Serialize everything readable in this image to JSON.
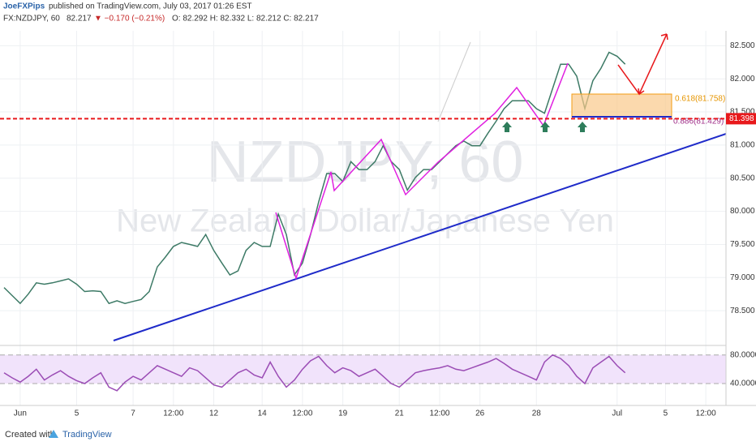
{
  "header": {
    "author": "JoeFXPips",
    "published": "published on TradingView.com, July 03, 2017 01:26 EST",
    "symbol": "FX:NZDJPY, 60",
    "price": "82.217",
    "change": "▼ −0.170 (−0.21%)",
    "ohlc": "O: 82.292 H: 82.332 L: 82.212 C: 82.217"
  },
  "watermark": {
    "symbol": "NZDJPY, 60",
    "name": "New Zealand Dollar/Japanese Yen"
  },
  "annotations": {
    "fib_618": "0.618(81.758)",
    "fib_886": "0.886(81.429)"
  },
  "footer": {
    "created": "Created with",
    "brand": "TradingView"
  },
  "chart_data": [
    {
      "type": "line",
      "color": "#3d7a66",
      "grid": true,
      "categories": [
        null,
        null,
        "Jun",
        null,
        null,
        null,
        null,
        null,
        null,
        "5",
        null,
        null,
        null,
        null,
        null,
        null,
        "7",
        null,
        null,
        null,
        null,
        "12:00",
        null,
        null,
        null,
        null,
        "12",
        null,
        null,
        null,
        null,
        null,
        "14",
        null,
        null,
        null,
        null,
        "12:00",
        null,
        null,
        null,
        null,
        "19",
        null,
        null,
        null,
        null,
        null,
        null,
        "21",
        null,
        null,
        null,
        null,
        "12:00",
        null,
        null,
        null,
        null,
        "26",
        null,
        null,
        null,
        null,
        null,
        null,
        "28",
        null,
        null,
        null,
        null,
        null,
        null,
        null,
        null,
        null,
        "Jul",
        null,
        null,
        null,
        null,
        null,
        "5",
        null,
        null,
        null,
        null,
        "12:00",
        null,
        null
      ],
      "values": [
        78.85,
        78.73,
        78.61,
        78.75,
        78.92,
        78.9,
        78.92,
        78.95,
        78.98,
        78.9,
        78.79,
        78.8,
        78.79,
        78.61,
        78.65,
        78.61,
        78.64,
        78.67,
        78.79,
        79.16,
        79.31,
        79.47,
        79.53,
        79.5,
        79.47,
        79.65,
        79.41,
        79.22,
        79.04,
        79.1,
        79.41,
        79.53,
        79.47,
        79.47,
        79.96,
        79.65,
        79.04,
        79.22,
        79.65,
        80.14,
        80.57,
        80.57,
        80.45,
        80.75,
        80.63,
        80.63,
        80.75,
        80.99,
        80.75,
        80.63,
        80.32,
        80.51,
        80.63,
        80.63,
        80.75,
        80.87,
        80.99,
        81.06,
        80.99,
        80.99,
        81.18,
        81.36,
        81.55,
        81.67,
        81.67,
        81.67,
        81.55,
        81.48,
        81.85,
        82.22,
        82.22,
        82.04,
        81.55,
        81.97,
        82.16,
        82.4,
        82.34,
        82.22,
        null,
        null,
        null,
        null,
        null,
        null,
        null,
        null,
        null,
        null,
        null,
        null
      ],
      "ylim": [
        78.0,
        82.7
      ],
      "yticks": [
        {
          "value": 78.5,
          "label": "78.500"
        },
        {
          "value": 79,
          "label": "79.000"
        },
        {
          "value": 79.5,
          "label": "79.500"
        },
        {
          "value": 80,
          "label": "80.000"
        },
        {
          "value": 80.5,
          "label": "80.500"
        },
        {
          "value": 81,
          "label": "81.000"
        },
        {
          "value": 81.5,
          "label": "81.500"
        },
        {
          "value": 82,
          "label": "82.000"
        },
        {
          "value": 82.5,
          "label": "82.500"
        }
      ],
      "level": 81.398,
      "level_color": "#e8191c"
    },
    {
      "type": "line",
      "color": "#9b4db5",
      "grid": false,
      "values": [
        55,
        48,
        42,
        50,
        60,
        45,
        52,
        58,
        50,
        44,
        40,
        48,
        55,
        35,
        30,
        42,
        50,
        45,
        55,
        65,
        60,
        55,
        50,
        62,
        58,
        48,
        38,
        35,
        45,
        55,
        60,
        52,
        48,
        70,
        50,
        35,
        45,
        60,
        72,
        78,
        65,
        55,
        62,
        58,
        50,
        55,
        60,
        50,
        40,
        35,
        45,
        55,
        58,
        60,
        62,
        65,
        60,
        58,
        62,
        66,
        70,
        75,
        68,
        60,
        55,
        50,
        45,
        70,
        80,
        75,
        65,
        50,
        40,
        62,
        70,
        78,
        65,
        55,
        null,
        null,
        null,
        null,
        null,
        null,
        null,
        null,
        null,
        null,
        null,
        null
      ],
      "ylim": [
        15,
        91
      ],
      "yticks": [
        {
          "value": 40,
          "label": "40.0000"
        },
        {
          "value": 80,
          "label": "80.0000"
        }
      ]
    }
  ]
}
